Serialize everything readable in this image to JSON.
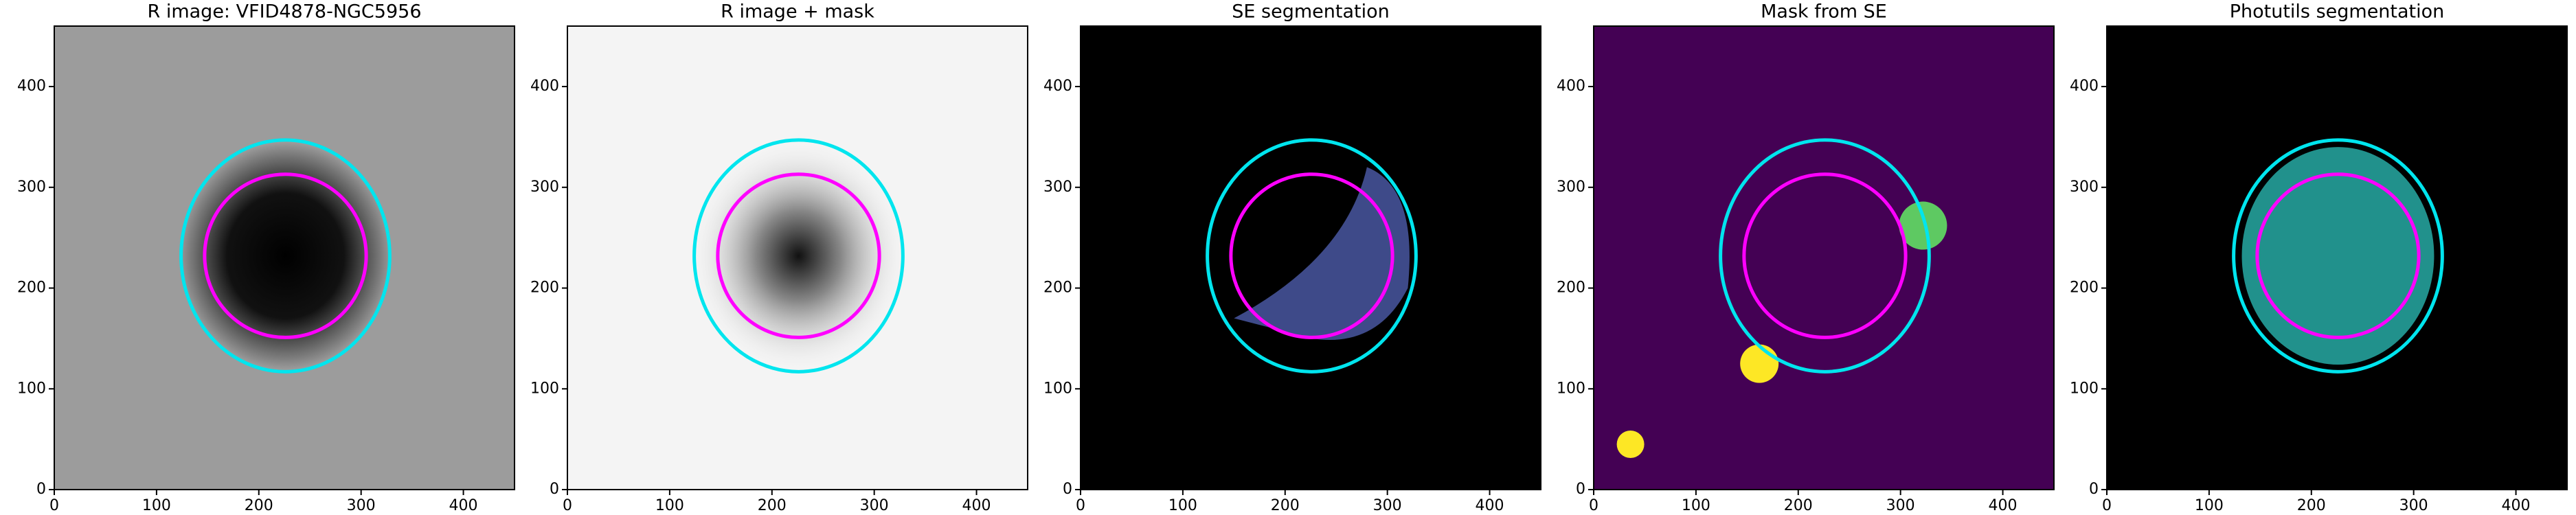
{
  "chart_data": [
    {
      "type": "image",
      "title": "R image: VFID4878-NGC5956",
      "background": "#9c9c9c",
      "xlim": [
        0,
        450
      ],
      "ylim": [
        0,
        460
      ],
      "xticks": [
        0,
        100,
        200,
        300,
        400
      ],
      "yticks": [
        0,
        100,
        200,
        300,
        400
      ],
      "ellipses": [
        {
          "center": [
            226,
            232
          ],
          "radii": [
            102,
            115
          ],
          "color": "#00e5ee"
        },
        {
          "center": [
            226,
            232
          ],
          "radii": [
            79,
            81
          ],
          "color": "#ff00ff"
        }
      ]
    },
    {
      "type": "image",
      "title": "R image + mask",
      "background": "#f4f4f4",
      "xlim": [
        0,
        450
      ],
      "ylim": [
        0,
        460
      ],
      "xticks": [
        0,
        100,
        200,
        300,
        400
      ],
      "yticks": [
        0,
        100,
        200,
        300,
        400
      ],
      "ellipses": [
        {
          "center": [
            226,
            232
          ],
          "radii": [
            102,
            115
          ],
          "color": "#00e5ee"
        },
        {
          "center": [
            226,
            232
          ],
          "radii": [
            79,
            81
          ],
          "color": "#ff00ff"
        }
      ]
    },
    {
      "type": "image",
      "title": "SE segmentation",
      "background": "#000000",
      "xlim": [
        0,
        450
      ],
      "ylim": [
        0,
        460
      ],
      "xticks": [
        0,
        100,
        200,
        300,
        400
      ],
      "yticks": [
        0,
        100,
        200,
        300,
        400
      ],
      "ellipses": [
        {
          "center": [
            226,
            232
          ],
          "radii": [
            102,
            115
          ],
          "color": "#00e5ee"
        },
        {
          "center": [
            226,
            232
          ],
          "radii": [
            79,
            81
          ],
          "color": "#ff00ff"
        }
      ]
    },
    {
      "type": "image",
      "title": "Mask from SE",
      "background": "#440154",
      "xlim": [
        0,
        450
      ],
      "ylim": [
        0,
        460
      ],
      "xticks": [
        0,
        100,
        200,
        300,
        400
      ],
      "yticks": [
        0,
        100,
        200,
        300,
        400
      ],
      "ellipses": [
        {
          "center": [
            226,
            232
          ],
          "radii": [
            102,
            115
          ],
          "color": "#00e5ee"
        },
        {
          "center": [
            226,
            232
          ],
          "radii": [
            79,
            81
          ],
          "color": "#ff00ff"
        }
      ]
    },
    {
      "type": "image",
      "title": "Photutils segmentation",
      "background": "#000000",
      "xlim": [
        0,
        450
      ],
      "ylim": [
        0,
        460
      ],
      "xticks": [
        0,
        100,
        200,
        300,
        400
      ],
      "yticks": [
        0,
        100,
        200,
        300,
        400
      ],
      "ellipses": [
        {
          "center": [
            226,
            232
          ],
          "radii": [
            102,
            115
          ],
          "color": "#00e5ee"
        },
        {
          "center": [
            226,
            232
          ],
          "radii": [
            79,
            81
          ],
          "color": "#ff00ff"
        }
      ]
    }
  ]
}
